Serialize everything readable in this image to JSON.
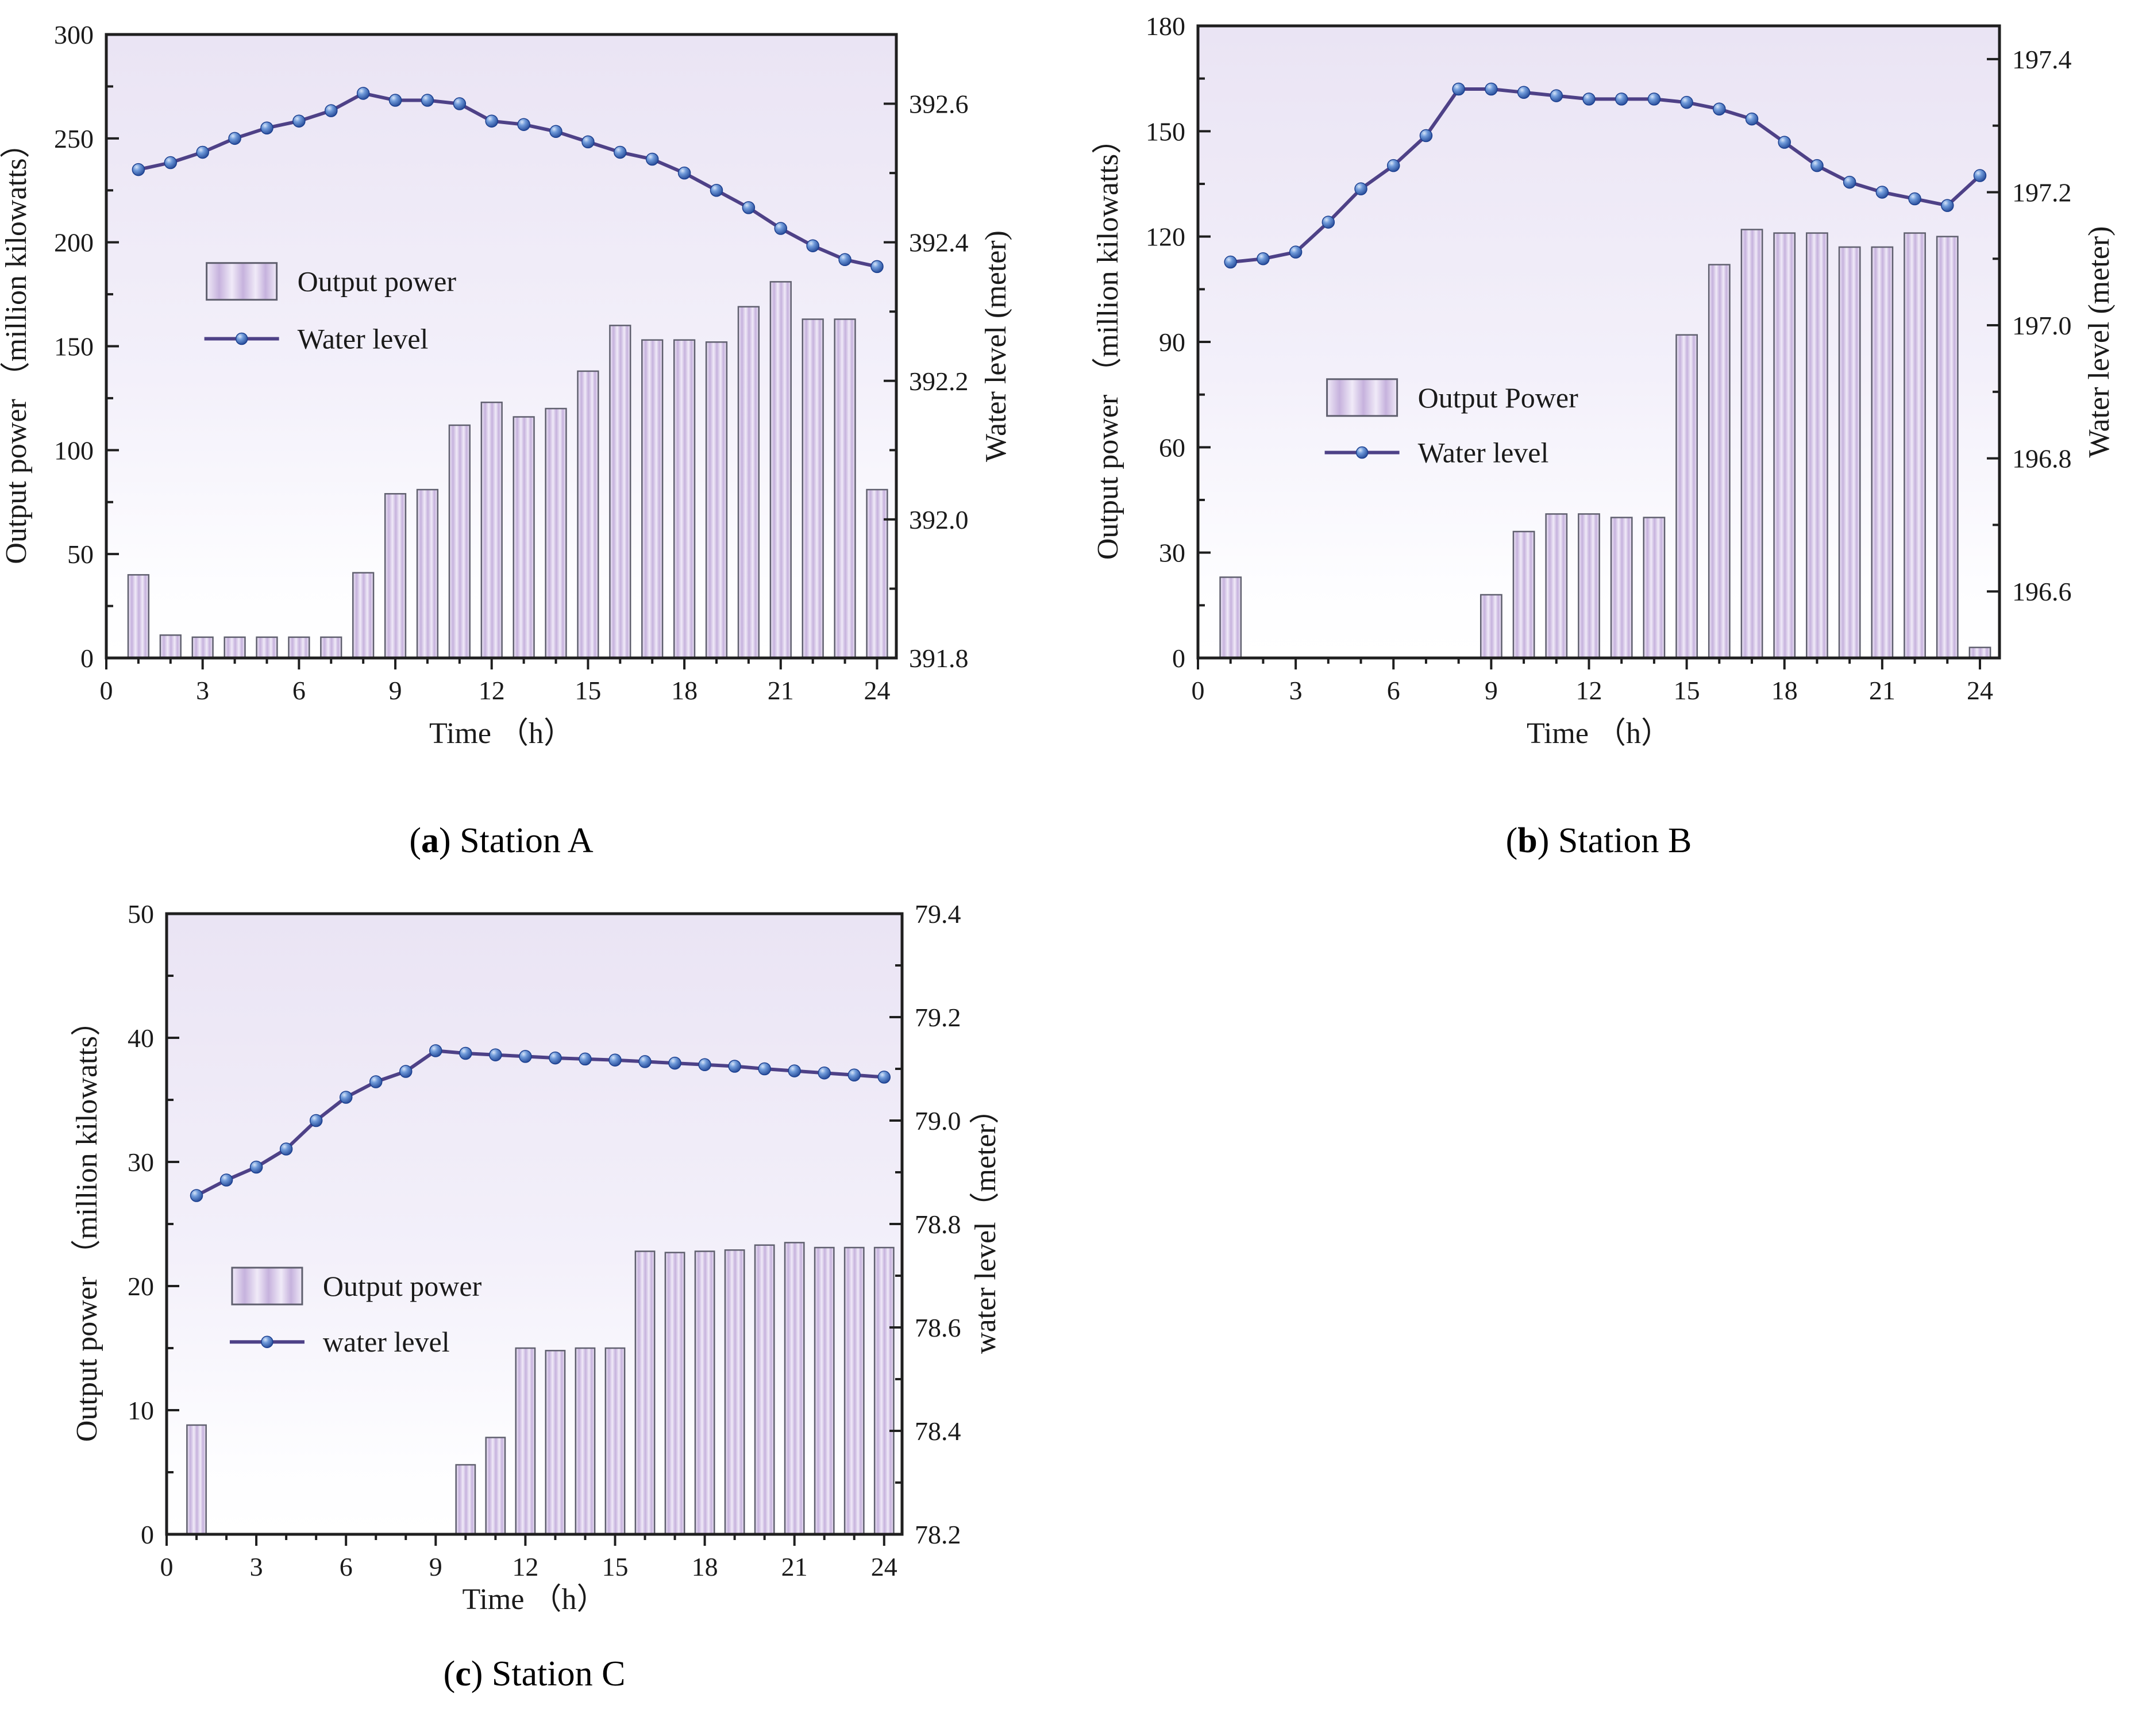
{
  "colors": {
    "plot_bg_top": "#eae4f4",
    "plot_bg_mid": "#f3f0fa",
    "bar_fill_light": "#f0eaf8",
    "bar_fill_dark": "#c6b2dd",
    "bar_stroke": "#5f5f6e",
    "line": "#4e4187",
    "marker_light": "#d6e4f8",
    "marker_mid": "#6f9ada",
    "marker_dark": "#1b3f8f",
    "axis": "#1f1f1f",
    "text": "#1a1a1a"
  },
  "chart_data": [
    {
      "id": "a",
      "type": "bar+line",
      "caption": {
        "prefix": "(",
        "letter": "a",
        "suffix": ") ",
        "text": "Station A"
      },
      "hours": [
        1,
        2,
        3,
        4,
        5,
        6,
        7,
        8,
        9,
        10,
        11,
        12,
        13,
        14,
        15,
        16,
        17,
        18,
        19,
        20,
        21,
        22,
        23,
        24
      ],
      "x_axis": {
        "label": "Time （h）",
        "lim": [
          0,
          24.6
        ],
        "ticks": [
          0,
          3,
          6,
          9,
          12,
          15,
          18,
          21,
          24
        ],
        "minor_step": 1
      },
      "left_axis": {
        "label": "Output power （million kilowatts）",
        "lim": [
          0,
          300
        ],
        "ticks": [
          0,
          50,
          100,
          150,
          200,
          250,
          300
        ],
        "minor_step": 25
      },
      "right_axis": {
        "label": "Water level (meter)",
        "lim": [
          391.8,
          392.7
        ],
        "ticks": [
          391.8,
          392.0,
          392.2,
          392.4,
          392.6
        ],
        "minor_step": 0.1,
        "decimals": 1
      },
      "series": [
        {
          "name": "Output power",
          "type": "bar",
          "axis": "left",
          "values": [
            40,
            11,
            10,
            10,
            10,
            10,
            10,
            41,
            79,
            81,
            112,
            123,
            116,
            120,
            138,
            160,
            153,
            153,
            152,
            169,
            181,
            163,
            163,
            81
          ]
        },
        {
          "name": "Water level",
          "type": "line",
          "axis": "right",
          "values": [
            392.505,
            392.515,
            392.53,
            392.55,
            392.565,
            392.575,
            392.59,
            392.615,
            392.605,
            392.605,
            392.6,
            392.575,
            392.57,
            392.56,
            392.545,
            392.53,
            392.52,
            392.5,
            392.475,
            392.45,
            392.42,
            392.395,
            392.375,
            392.365
          ]
        }
      ],
      "legend": {
        "labels": [
          "Output power",
          "Water level"
        ],
        "position": "inside-upper-left"
      }
    },
    {
      "id": "b",
      "type": "bar+line",
      "caption": {
        "prefix": "(",
        "letter": "b",
        "suffix": ") ",
        "text": "Station B"
      },
      "hours": [
        1,
        2,
        3,
        4,
        5,
        6,
        7,
        8,
        9,
        10,
        11,
        12,
        13,
        14,
        15,
        16,
        17,
        18,
        19,
        20,
        21,
        22,
        23,
        24
      ],
      "x_axis": {
        "label": "Time （h）",
        "lim": [
          0,
          24.6
        ],
        "ticks": [
          0,
          3,
          6,
          9,
          12,
          15,
          18,
          21,
          24
        ],
        "minor_step": 1
      },
      "left_axis": {
        "label": "Output power （million kilowatts）",
        "lim": [
          0,
          180
        ],
        "ticks": [
          0,
          30,
          60,
          90,
          120,
          150,
          180
        ],
        "minor_step": 15
      },
      "right_axis": {
        "label": "Water level (meter)",
        "lim": [
          196.5,
          197.45
        ],
        "ticks": [
          196.6,
          196.8,
          197.0,
          197.2,
          197.4
        ],
        "minor_step": 0.1,
        "decimals": 1
      },
      "series": [
        {
          "name": "Output Power",
          "type": "bar",
          "axis": "left",
          "values": [
            23,
            0,
            0,
            0,
            0,
            0,
            0,
            0,
            18,
            36,
            41,
            41,
            40,
            40,
            92,
            112,
            122,
            121,
            121,
            117,
            117,
            121,
            120,
            3
          ]
        },
        {
          "name": "Water level",
          "type": "line",
          "axis": "right",
          "values": [
            197.095,
            197.1,
            197.11,
            197.155,
            197.205,
            197.24,
            197.285,
            197.355,
            197.355,
            197.35,
            197.345,
            197.34,
            197.34,
            197.34,
            197.335,
            197.325,
            197.31,
            197.275,
            197.24,
            197.215,
            197.2,
            197.19,
            197.18,
            197.225
          ]
        }
      ],
      "legend": {
        "labels": [
          "Output Power",
          "Water level"
        ],
        "position": "inside-middle-left"
      }
    },
    {
      "id": "c",
      "type": "bar+line",
      "caption": {
        "prefix": "(",
        "letter": "c",
        "suffix": ") ",
        "text": "Station C"
      },
      "hours": [
        1,
        2,
        3,
        4,
        5,
        6,
        7,
        8,
        9,
        10,
        11,
        12,
        13,
        14,
        15,
        16,
        17,
        18,
        19,
        20,
        21,
        22,
        23,
        24
      ],
      "x_axis": {
        "label": "Time （h）",
        "lim": [
          0,
          24.6
        ],
        "ticks": [
          0,
          3,
          6,
          9,
          12,
          15,
          18,
          21,
          24
        ],
        "minor_step": 1
      },
      "left_axis": {
        "label": "Output power （million kilowatts）",
        "lim": [
          0,
          50
        ],
        "ticks": [
          0,
          10,
          20,
          30,
          40,
          50
        ],
        "minor_step": 5
      },
      "right_axis": {
        "label": "water level（meter）",
        "lim": [
          78.2,
          79.4
        ],
        "ticks": [
          78.2,
          78.4,
          78.6,
          78.8,
          79.0,
          79.2,
          79.4
        ],
        "minor_step": 0.1,
        "decimals": 1
      },
      "series": [
        {
          "name": "Output power",
          "type": "bar",
          "axis": "left",
          "values": [
            8.8,
            0,
            0,
            0,
            0,
            0,
            0,
            0,
            0,
            5.6,
            7.8,
            15,
            14.8,
            15,
            15,
            22.8,
            22.7,
            22.8,
            22.9,
            23.3,
            23.5,
            23.1,
            23.1,
            23.1
          ]
        },
        {
          "name": "water level",
          "type": "line",
          "axis": "right",
          "values": [
            78.855,
            78.885,
            78.91,
            78.945,
            79.0,
            79.045,
            79.075,
            79.095,
            79.135,
            79.13,
            79.127,
            79.124,
            79.121,
            79.119,
            79.117,
            79.114,
            79.111,
            79.108,
            79.105,
            79.1,
            79.096,
            79.092,
            79.088,
            79.084
          ]
        }
      ],
      "legend": {
        "labels": [
          "Output power",
          "water level"
        ],
        "position": "inside-middle-left"
      }
    }
  ]
}
